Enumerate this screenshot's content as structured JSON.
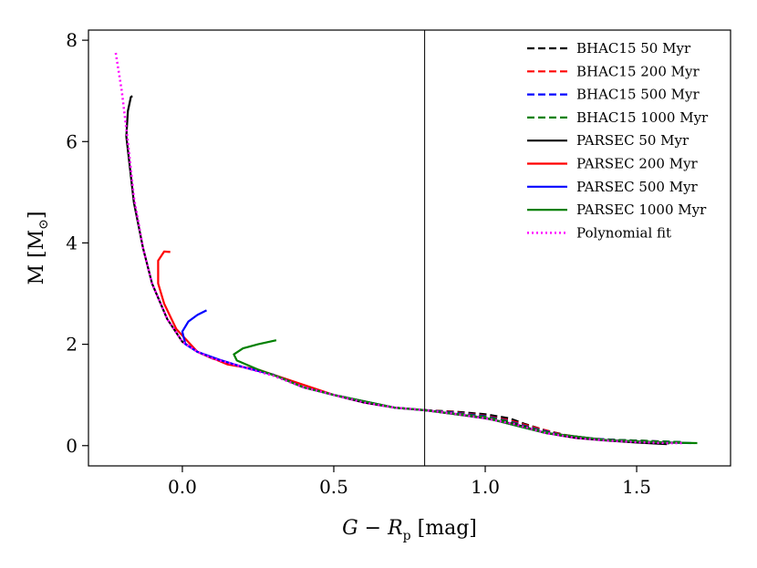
{
  "chart_data": {
    "type": "line",
    "xlabel": "G − R",
    "xlabel_sub": "p",
    "xlabel_unit": " [mag]",
    "ylabel": "M [M",
    "ylabel_sun": "⊙",
    "ylabel_close": "]",
    "xlim": [
      -0.31,
      1.81
    ],
    "ylim": [
      -0.4,
      8.2
    ],
    "xticks": [
      0.0,
      0.5,
      1.0,
      1.5
    ],
    "xtick_labels": [
      "0.0",
      "0.5",
      "1.0",
      "1.5"
    ],
    "yticks": [
      0,
      2,
      4,
      6,
      8
    ],
    "ytick_labels": [
      "0",
      "2",
      "4",
      "6",
      "8"
    ],
    "vline_x": 0.8,
    "legend_position": "top-right",
    "series": [
      {
        "name": "BHAC15 50 Myr",
        "color": "#000000",
        "style": "dashed",
        "x": [
          0.8,
          0.9,
          1.0,
          1.08,
          1.13,
          1.2,
          1.3,
          1.4,
          1.5,
          1.57,
          1.62
        ],
        "y": [
          0.7,
          0.67,
          0.62,
          0.54,
          0.43,
          0.3,
          0.16,
          0.11,
          0.08,
          0.06,
          0.04
        ]
      },
      {
        "name": "BHAC15 200 Myr",
        "color": "#ff0000",
        "style": "dashed",
        "x": [
          0.8,
          0.9,
          1.0,
          1.08,
          1.15,
          1.25,
          1.35,
          1.45,
          1.55,
          1.63
        ],
        "y": [
          0.7,
          0.66,
          0.59,
          0.5,
          0.38,
          0.22,
          0.14,
          0.11,
          0.09,
          0.07
        ]
      },
      {
        "name": "BHAC15 500 Myr",
        "color": "#0000ff",
        "style": "dashed",
        "x": [
          0.8,
          0.9,
          1.0,
          1.08,
          1.15,
          1.25,
          1.35,
          1.45,
          1.55,
          1.65
        ],
        "y": [
          0.7,
          0.65,
          0.58,
          0.48,
          0.36,
          0.21,
          0.14,
          0.11,
          0.09,
          0.07
        ]
      },
      {
        "name": "BHAC15 1000 Myr",
        "color": "#008000",
        "style": "dashed",
        "x": [
          0.8,
          0.9,
          1.0,
          1.08,
          1.15,
          1.25,
          1.35,
          1.45,
          1.55,
          1.65
        ],
        "y": [
          0.7,
          0.64,
          0.57,
          0.47,
          0.35,
          0.2,
          0.13,
          0.11,
          0.09,
          0.07
        ]
      },
      {
        "name": "PARSEC 50 Myr",
        "color": "#000000",
        "style": "solid",
        "x": [
          -0.165,
          -0.17,
          -0.18,
          -0.185,
          -0.16,
          -0.13,
          -0.1,
          -0.05,
          0.0,
          0.05,
          0.1,
          0.2,
          0.3,
          0.4,
          0.5,
          0.6,
          0.7,
          0.8,
          0.9,
          1.0,
          1.1,
          1.2,
          1.3,
          1.4,
          1.5,
          1.6
        ],
        "y": [
          6.9,
          6.88,
          6.6,
          6.1,
          4.8,
          3.9,
          3.2,
          2.5,
          2.05,
          1.85,
          1.72,
          1.55,
          1.4,
          1.15,
          1.0,
          0.85,
          0.75,
          0.7,
          0.62,
          0.54,
          0.42,
          0.25,
          0.15,
          0.1,
          0.06,
          0.03
        ]
      },
      {
        "name": "PARSEC 200 Myr",
        "color": "#ff0000",
        "style": "solid",
        "x": [
          -0.04,
          -0.06,
          -0.08,
          -0.08,
          -0.06,
          -0.02,
          0.05,
          0.15,
          0.25,
          0.35,
          0.5,
          0.7,
          0.8,
          1.0,
          1.2,
          1.4,
          1.6
        ],
        "y": [
          3.82,
          3.83,
          3.65,
          3.2,
          2.8,
          2.3,
          1.85,
          1.6,
          1.5,
          1.3,
          1.0,
          0.75,
          0.7,
          0.55,
          0.25,
          0.11,
          0.06
        ]
      },
      {
        "name": "PARSEC 500 Myr",
        "color": "#0000ff",
        "style": "solid",
        "x": [
          0.08,
          0.05,
          0.02,
          0.0,
          0.01,
          0.05,
          0.12,
          0.2,
          0.3,
          0.4,
          0.5,
          0.7,
          0.8,
          1.0,
          1.2,
          1.4,
          1.6,
          1.68
        ],
        "y": [
          2.67,
          2.58,
          2.45,
          2.25,
          2.0,
          1.85,
          1.7,
          1.55,
          1.4,
          1.15,
          1.0,
          0.75,
          0.7,
          0.55,
          0.25,
          0.11,
          0.06,
          0.05
        ]
      },
      {
        "name": "PARSEC 1000 Myr",
        "color": "#008000",
        "style": "solid",
        "x": [
          0.31,
          0.25,
          0.2,
          0.17,
          0.18,
          0.25,
          0.32,
          0.4,
          0.5,
          0.7,
          0.8,
          1.0,
          1.2,
          1.4,
          1.6,
          1.7
        ],
        "y": [
          2.08,
          2.0,
          1.92,
          1.8,
          1.68,
          1.5,
          1.35,
          1.15,
          1.0,
          0.75,
          0.7,
          0.55,
          0.25,
          0.11,
          0.06,
          0.05
        ]
      },
      {
        "name": "Polynomial fit",
        "color": "#ff00ff",
        "style": "dotted",
        "x": [
          -0.22,
          -0.2,
          -0.18,
          -0.16,
          -0.13,
          -0.1,
          -0.05,
          0.0,
          0.05,
          0.1,
          0.2,
          0.3,
          0.4,
          0.5,
          0.6,
          0.7,
          0.8,
          0.9,
          1.0,
          1.1,
          1.2,
          1.3,
          1.4,
          1.5,
          1.6,
          1.65
        ],
        "y": [
          7.75,
          7.0,
          6.0,
          4.9,
          3.9,
          3.2,
          2.5,
          2.05,
          1.85,
          1.72,
          1.55,
          1.38,
          1.15,
          1.0,
          0.85,
          0.75,
          0.7,
          0.63,
          0.54,
          0.42,
          0.25,
          0.15,
          0.1,
          0.07,
          0.05,
          0.05
        ]
      }
    ]
  }
}
